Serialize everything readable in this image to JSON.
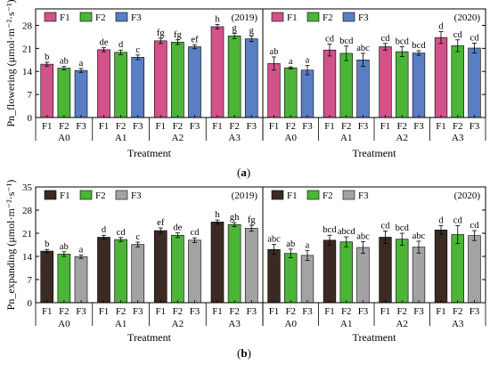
{
  "colors": {
    "a": [
      "#D2528A",
      "#4CB538",
      "#5A7EC4"
    ],
    "b": [
      "#3B2A24",
      "#4CB538",
      "#A3A3A3"
    ]
  },
  "panel_labels": {
    "a": "(a)",
    "b": "(b)"
  },
  "chart_data": [
    {
      "type": "bar",
      "panel": "a",
      "ylabel": "Pn_flowering (μmol·m⁻²·s⁻¹)",
      "ylim": [
        0,
        33
      ],
      "yticks": [
        0,
        7,
        14,
        21,
        28
      ],
      "ytick_labels": [
        "0",
        "7",
        "14",
        "21",
        "28"
      ],
      "legend": [
        "F1",
        "F2",
        "F3"
      ],
      "treatments": [
        "A0",
        "A1",
        "A2",
        "A3"
      ],
      "fertilizers": [
        "F1",
        "F2",
        "F3"
      ],
      "xlabel": "Treatment",
      "years": [
        {
          "year": "(2019)",
          "values": [
            [
              16.2,
              15.0,
              14.3
            ],
            [
              20.6,
              19.8,
              18.3
            ],
            [
              23.3,
              22.9,
              21.5
            ],
            [
              27.6,
              24.8,
              23.9
            ]
          ],
          "errors": [
            [
              0.6,
              0.5,
              0.6
            ],
            [
              0.6,
              0.7,
              0.7
            ],
            [
              0.8,
              0.7,
              0.6
            ],
            [
              0.7,
              0.8,
              0.8
            ]
          ],
          "letters": [
            [
              "b",
              "ab",
              "a"
            ],
            [
              "de",
              "d",
              "c"
            ],
            [
              "fg",
              "fg",
              "ef"
            ],
            [
              "h",
              "g",
              "g"
            ]
          ]
        },
        {
          "year": "(2020)",
          "values": [
            [
              16.4,
              15.1,
              14.4
            ],
            [
              20.5,
              19.5,
              17.5
            ],
            [
              21.5,
              20.0,
              19.6
            ],
            [
              24.3,
              21.8,
              21.1
            ]
          ],
          "errors": [
            [
              2.0,
              0.3,
              1.4
            ],
            [
              1.8,
              2.2,
              2.0
            ],
            [
              1.0,
              1.5,
              0.7
            ],
            [
              1.8,
              1.8,
              1.5
            ]
          ],
          "letters": [
            [
              "ab",
              "a",
              "a"
            ],
            [
              "cd",
              "bcd",
              "abc"
            ],
            [
              "cd",
              "bcd",
              "bcd"
            ],
            [
              "d",
              "cd",
              "cd"
            ]
          ]
        }
      ]
    },
    {
      "type": "bar",
      "panel": "b",
      "ylabel": "Pn_expanding (μmol·m⁻²·s⁻¹)",
      "ylim": [
        0,
        35
      ],
      "yticks": [
        0,
        7,
        14,
        21,
        28,
        35
      ],
      "ytick_labels": [
        "0",
        "7",
        "14",
        "21",
        "28",
        "35"
      ],
      "legend": [
        "F1",
        "F2",
        "F3"
      ],
      "treatments": [
        "A0",
        "A1",
        "A2",
        "A3"
      ],
      "fertilizers": [
        "F1",
        "F2",
        "F3"
      ],
      "xlabel": "Treatment",
      "years": [
        {
          "year": "(2019)",
          "values": [
            [
              15.6,
              14.7,
              13.9
            ],
            [
              19.8,
              19.1,
              17.6
            ],
            [
              21.8,
              20.4,
              18.9
            ],
            [
              24.4,
              23.6,
              22.5
            ]
          ],
          "errors": [
            [
              0.5,
              0.7,
              0.5
            ],
            [
              0.6,
              0.6,
              0.7
            ],
            [
              0.8,
              0.7,
              0.7
            ],
            [
              0.6,
              0.6,
              0.9
            ]
          ],
          "letters": [
            [
              "b",
              "ab",
              "a"
            ],
            [
              "d",
              "cd",
              "c"
            ],
            [
              "ef",
              "de",
              "cd"
            ],
            [
              "h",
              "gh",
              "fg"
            ]
          ]
        },
        {
          "year": "(2020)",
          "values": [
            [
              16.1,
              14.9,
              14.3
            ],
            [
              18.9,
              18.4,
              16.7
            ],
            [
              19.8,
              19.2,
              16.8
            ],
            [
              22.0,
              20.6,
              20.3
            ]
          ],
          "errors": [
            [
              1.5,
              1.3,
              1.5
            ],
            [
              1.5,
              1.5,
              1.8
            ],
            [
              1.9,
              1.8,
              1.8
            ],
            [
              1.3,
              2.7,
              1.5
            ]
          ],
          "letters": [
            [
              "abc",
              "ab",
              "a"
            ],
            [
              "bcd",
              "abcd",
              "abc"
            ],
            [
              "cd",
              "bcd",
              "abc"
            ],
            [
              "d",
              "cd",
              "cd"
            ]
          ]
        }
      ]
    }
  ]
}
